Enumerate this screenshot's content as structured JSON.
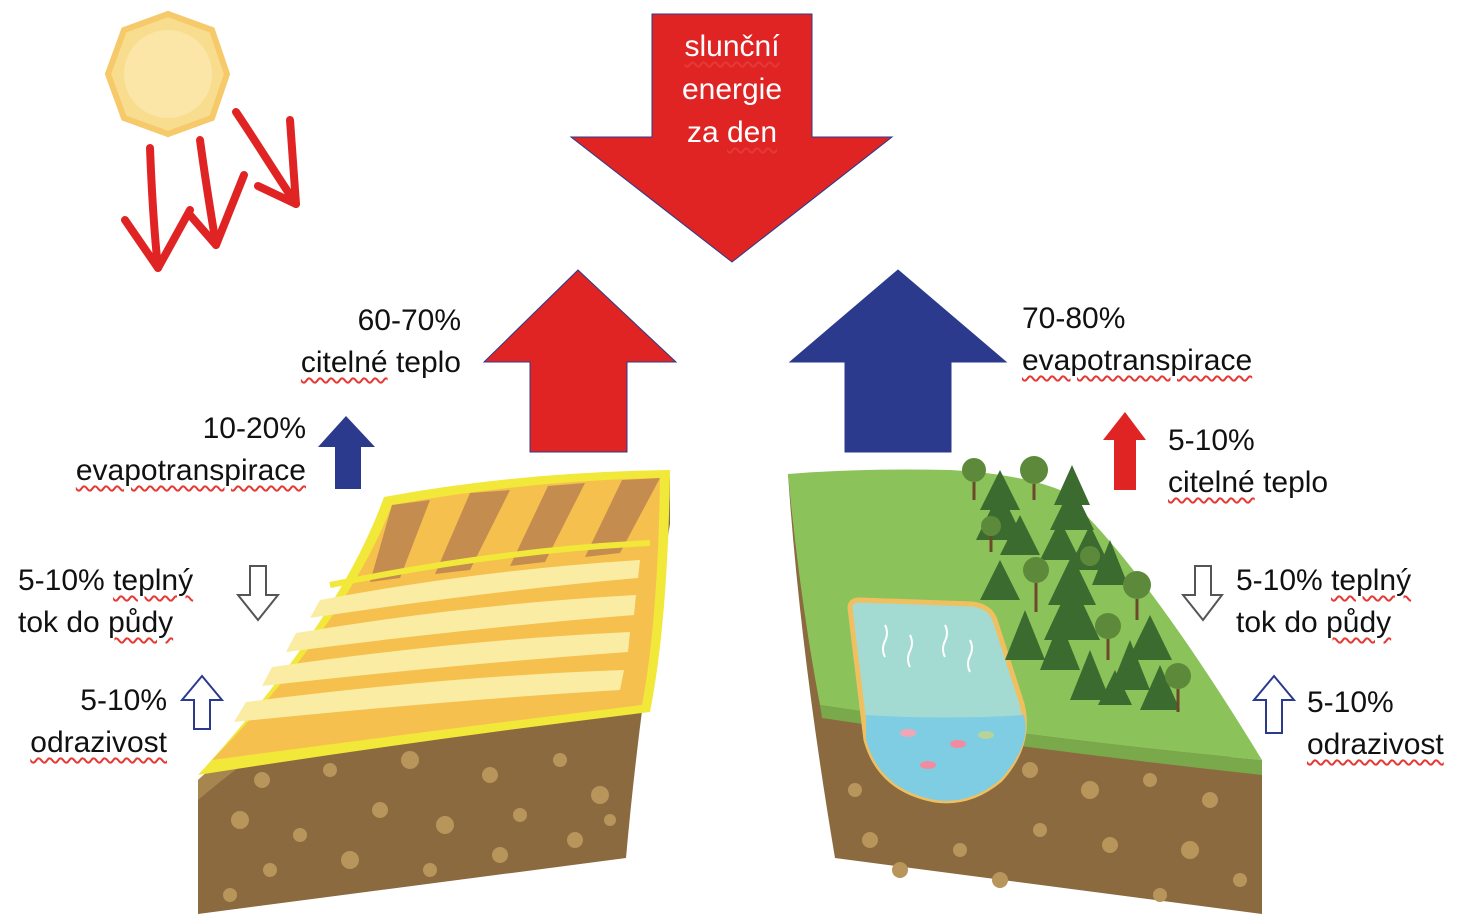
{
  "sun": {
    "label": {
      "line1": "slunční",
      "line2": "energie",
      "line3": "za den"
    }
  },
  "left": {
    "sensible": {
      "pct": "60-70%",
      "word1": "citelné",
      "word2": "teplo"
    },
    "evapo": {
      "pct": "10-20%",
      "word": "evapotranspirace"
    },
    "ground_flux": {
      "line1a": "5-10%",
      "line1b": "teplný",
      "line2a": "tok do",
      "line2b": "půdy"
    },
    "albedo": {
      "pct": "5-10%",
      "word": "odrazivost"
    }
  },
  "right": {
    "evapo": {
      "pct": "70-80%",
      "word": "evapotranspirace"
    },
    "sensible": {
      "pct": "5-10%",
      "word1": "citelné",
      "word2": "teplo"
    },
    "ground_flux": {
      "line1a": "5-10%",
      "line1b": "teplný",
      "line2a": "tok do",
      "line2b": "půdy"
    },
    "albedo": {
      "pct": "5-10%",
      "word": "odrazivost"
    }
  },
  "colors": {
    "red_arrow": "#e02424",
    "blue_arrow": "#2b3a8c",
    "sun": "#f7dc8f",
    "field_yellow": "#f1e83a",
    "field_orange": "#f6c04f",
    "field_brown": "#c58c4f",
    "grass": "#8cc25a",
    "soil": "#8b6a3f",
    "water": "#7ecde3",
    "tree": "#3b6b2f"
  }
}
